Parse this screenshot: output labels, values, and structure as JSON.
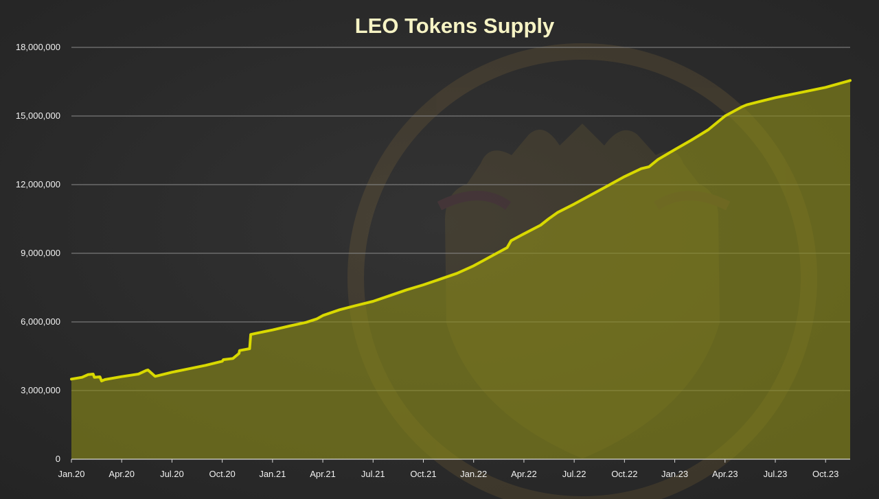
{
  "chart_data": {
    "type": "area",
    "title": "LEO Tokens Supply",
    "xlabel": "",
    "ylabel": "",
    "ylim": [
      0,
      18000000
    ],
    "y_ticks": [
      0,
      3000000,
      6000000,
      9000000,
      12000000,
      15000000,
      18000000
    ],
    "y_tick_labels": [
      "0",
      "3,000,000",
      "6,000,000",
      "9,000,000",
      "12,000,000",
      "15,000,000",
      "18,000,000"
    ],
    "x_tick_labels": [
      "Jan.20",
      "Apr.20",
      "Jul.20",
      "Oct.20",
      "Jan.21",
      "Apr.21",
      "Jul.21",
      "Oct.21",
      "Jan.22",
      "Apr.22",
      "Jul.22",
      "Oct.22",
      "Jan.23",
      "Apr.23",
      "Jul.23",
      "Oct.23"
    ],
    "xlim": [
      "2020-01",
      "2023-11-15"
    ],
    "grid": "horizontal",
    "line_color": "#d9d900",
    "fill_color": "#8a8a18",
    "series": [
      {
        "x": [
          "2020-01",
          "2020-01-20",
          "2020-02",
          "2020-02-10",
          "2020-02-12",
          "2020-02-22",
          "2020-02-25",
          "2020-03",
          "2020-04",
          "2020-05",
          "2020-05-15",
          "2020-05-18",
          "2020-05-28",
          "2020-06",
          "2020-07",
          "2020-08",
          "2020-09",
          "2020-10",
          "2020-10-03",
          "2020-10-20",
          "2020-11",
          "2020-11-02",
          "2020-11-20",
          "2020-11-22",
          "2020-12",
          "2021-01",
          "2021-02",
          "2021-03",
          "2021-03-20",
          "2021-04",
          "2021-05",
          "2021-06",
          "2021-07",
          "2021-08",
          "2021-09",
          "2021-10",
          "2021-11",
          "2021-12",
          "2022-01",
          "2022-02",
          "2022-03",
          "2022-03-08",
          "2022-04",
          "2022-05",
          "2022-05-15",
          "2022-06",
          "2022-07",
          "2022-08",
          "2022-09",
          "2022-10",
          "2022-11",
          "2022-11-15",
          "2022-12",
          "2023-01",
          "2023-02",
          "2023-03",
          "2023-04",
          "2023-05",
          "2023-05-10",
          "2023-06",
          "2023-07",
          "2023-08",
          "2023-09",
          "2023-10",
          "2023-11-15"
        ],
        "values": [
          3500000,
          3580000,
          3700000,
          3720000,
          3580000,
          3600000,
          3420000,
          3480000,
          3610000,
          3720000,
          3880000,
          3900000,
          3680000,
          3620000,
          3800000,
          3950000,
          4100000,
          4280000,
          4350000,
          4400000,
          4620000,
          4750000,
          4830000,
          5450000,
          5500000,
          5650000,
          5820000,
          5980000,
          6130000,
          6280000,
          6530000,
          6720000,
          6900000,
          7150000,
          7400000,
          7620000,
          7870000,
          8120000,
          8450000,
          8850000,
          9250000,
          9550000,
          9850000,
          10230000,
          10500000,
          10780000,
          11150000,
          11550000,
          11950000,
          12350000,
          12700000,
          12780000,
          13100000,
          13530000,
          13950000,
          14400000,
          15000000,
          15400000,
          15490000,
          15620000,
          15800000,
          15950000,
          16100000,
          16250000,
          16550000
        ]
      }
    ]
  }
}
